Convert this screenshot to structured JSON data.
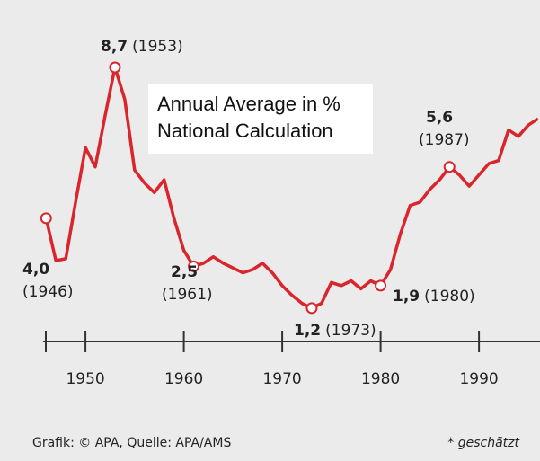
{
  "chart_data": {
    "type": "line",
    "subtitle_lines": [
      "Annual Average in %",
      "National Calculation"
    ],
    "source": "Grafik: © APA, Quelle: APA/AMS",
    "note": "* geschätzt",
    "color": "#d8262c",
    "xlim": [
      1945.7,
      1996.2
    ],
    "xticks": [
      1950,
      1960,
      1970,
      1980,
      1990
    ],
    "ylim": [
      0.16,
      10.8
    ],
    "x": [
      1946,
      1947,
      1948,
      1949,
      1950,
      1951,
      1952,
      1953,
      1954,
      1955,
      1956,
      1957,
      1958,
      1959,
      1960,
      1961,
      1962,
      1963,
      1964,
      1965,
      1966,
      1967,
      1968,
      1969,
      1970,
      1971,
      1972,
      1973,
      1974,
      1975,
      1976,
      1977,
      1978,
      1979,
      1980,
      1981,
      1982,
      1983,
      1984,
      1985,
      1986,
      1987,
      1988,
      1989,
      1990,
      1991,
      1992,
      1993,
      1994,
      1995,
      1996
    ],
    "values": [
      4.0,
      2.68,
      2.74,
      4.5,
      6.2,
      5.6,
      7.2,
      8.7,
      7.7,
      5.5,
      5.1,
      4.8,
      5.2,
      4.0,
      3.0,
      2.5,
      2.6,
      2.8,
      2.6,
      2.45,
      2.3,
      2.4,
      2.6,
      2.3,
      1.9,
      1.6,
      1.35,
      1.2,
      1.35,
      2.0,
      1.9,
      2.05,
      1.8,
      2.05,
      1.9,
      2.4,
      3.5,
      4.4,
      4.5,
      4.9,
      5.2,
      5.6,
      5.35,
      5.0,
      5.35,
      5.7,
      5.8,
      6.75,
      6.55,
      6.9,
      7.1
    ],
    "value_labels": [
      "4,0",
      null,
      null,
      null,
      null,
      null,
      null,
      "8,7",
      null,
      null,
      null,
      null,
      null,
      null,
      null,
      "2,5",
      null,
      null,
      null,
      null,
      null,
      null,
      null,
      null,
      null,
      null,
      null,
      "1,2",
      null,
      null,
      null,
      null,
      null,
      null,
      "1,9",
      null,
      null,
      null,
      null,
      null,
      null,
      "5,6",
      null,
      null,
      null,
      null,
      null,
      null,
      null,
      null,
      null
    ],
    "point_labels": [
      "(1946)",
      null,
      null,
      null,
      null,
      null,
      null,
      "(1953)",
      null,
      null,
      null,
      null,
      null,
      null,
      null,
      "(1961)",
      null,
      null,
      null,
      null,
      null,
      null,
      null,
      null,
      null,
      null,
      null,
      "(1973)",
      null,
      null,
      null,
      null,
      null,
      null,
      "(1980)",
      null,
      null,
      null,
      null,
      null,
      null,
      "(1987)",
      null,
      null,
      null,
      null,
      null,
      null,
      null,
      null,
      null
    ]
  }
}
